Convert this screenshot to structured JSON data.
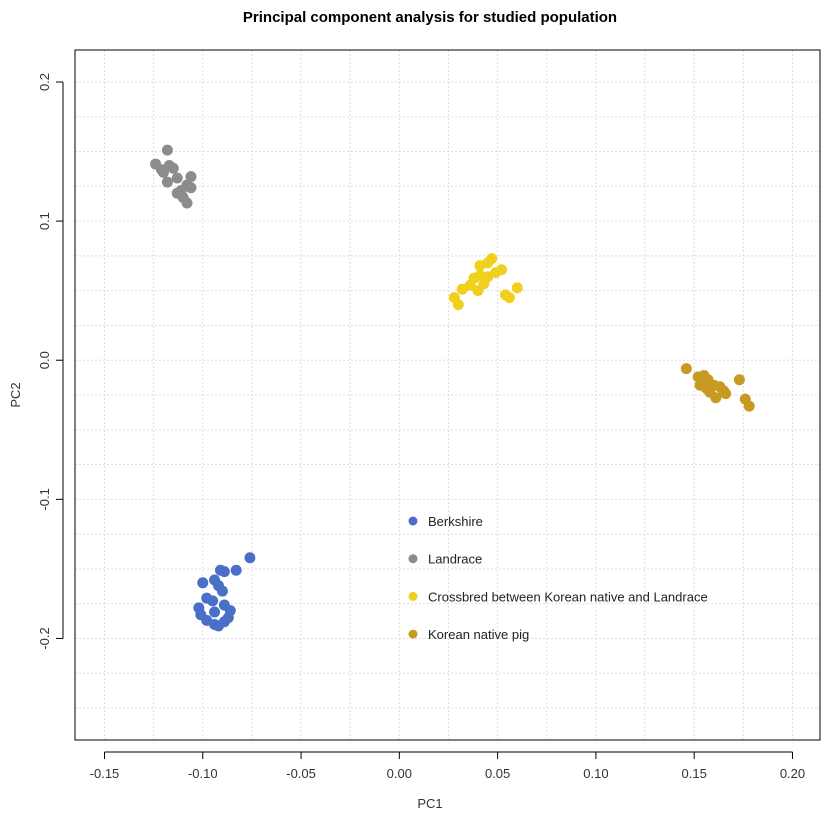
{
  "chart_data": {
    "type": "scatter",
    "title": "Principal component analysis for studied population",
    "xlabel": "PC1",
    "ylabel": "PC2",
    "xlim": [
      -0.165,
      0.214
    ],
    "ylim": [
      -0.273,
      0.223
    ],
    "xticks": [
      -0.15,
      -0.1,
      -0.05,
      0.0,
      0.05,
      0.1,
      0.15,
      0.2
    ],
    "xtick_labels": [
      "-0.15",
      "-0.10",
      "-0.05",
      "0.00",
      "0.05",
      "0.10",
      "0.15",
      "0.20"
    ],
    "yticks": [
      -0.2,
      -0.1,
      0.0,
      0.1,
      0.2
    ],
    "ytick_labels": [
      "-0.2",
      "-0.1",
      "0.0",
      "0.1",
      "0.2"
    ],
    "grid": true,
    "legend_position": "center-bottom",
    "series": [
      {
        "name": "Berkshire",
        "color": "#4a6fc7",
        "points": [
          [
            -0.076,
            -0.142
          ],
          [
            -0.083,
            -0.151
          ],
          [
            -0.089,
            -0.152
          ],
          [
            -0.091,
            -0.151
          ],
          [
            -0.1,
            -0.16
          ],
          [
            -0.094,
            -0.158
          ],
          [
            -0.092,
            -0.162
          ],
          [
            -0.09,
            -0.166
          ],
          [
            -0.098,
            -0.171
          ],
          [
            -0.095,
            -0.173
          ],
          [
            -0.102,
            -0.178
          ],
          [
            -0.089,
            -0.176
          ],
          [
            -0.101,
            -0.183
          ],
          [
            -0.098,
            -0.187
          ],
          [
            -0.094,
            -0.181
          ],
          [
            -0.092,
            -0.191
          ],
          [
            -0.087,
            -0.185
          ],
          [
            -0.086,
            -0.18
          ],
          [
            -0.089,
            -0.188
          ],
          [
            -0.094,
            -0.19
          ]
        ]
      },
      {
        "name": "Landrace",
        "color": "#8c8c8c",
        "points": [
          [
            -0.124,
            0.141
          ],
          [
            -0.121,
            0.137
          ],
          [
            -0.118,
            0.151
          ],
          [
            -0.117,
            0.14
          ],
          [
            -0.115,
            0.138
          ],
          [
            -0.118,
            0.128
          ],
          [
            -0.113,
            0.131
          ],
          [
            -0.111,
            0.122
          ],
          [
            -0.11,
            0.117
          ],
          [
            -0.108,
            0.113
          ],
          [
            -0.108,
            0.126
          ],
          [
            -0.106,
            0.132
          ],
          [
            -0.106,
            0.124
          ],
          [
            -0.113,
            0.12
          ],
          [
            -0.12,
            0.135
          ]
        ]
      },
      {
        "name": "Crossbred between Korean native and Landrace",
        "color": "#f1cf1f",
        "points": [
          [
            0.028,
            0.045
          ],
          [
            0.03,
            0.04
          ],
          [
            0.032,
            0.051
          ],
          [
            0.036,
            0.054
          ],
          [
            0.038,
            0.059
          ],
          [
            0.04,
            0.05
          ],
          [
            0.041,
            0.061
          ],
          [
            0.043,
            0.055
          ],
          [
            0.041,
            0.068
          ],
          [
            0.045,
            0.07
          ],
          [
            0.047,
            0.073
          ],
          [
            0.049,
            0.063
          ],
          [
            0.052,
            0.065
          ],
          [
            0.054,
            0.047
          ],
          [
            0.056,
            0.045
          ],
          [
            0.06,
            0.052
          ],
          [
            0.045,
            0.06
          ]
        ]
      },
      {
        "name": "Korean native pig",
        "color": "#c99a22",
        "points": [
          [
            0.146,
            -0.006
          ],
          [
            0.152,
            -0.012
          ],
          [
            0.155,
            -0.011
          ],
          [
            0.157,
            -0.014
          ],
          [
            0.16,
            -0.018
          ],
          [
            0.163,
            -0.019
          ],
          [
            0.165,
            -0.022
          ],
          [
            0.161,
            -0.027
          ],
          [
            0.173,
            -0.014
          ],
          [
            0.176,
            -0.028
          ],
          [
            0.178,
            -0.033
          ],
          [
            0.153,
            -0.018
          ],
          [
            0.158,
            -0.023
          ],
          [
            0.156,
            -0.02
          ],
          [
            0.166,
            -0.024
          ]
        ]
      }
    ]
  }
}
